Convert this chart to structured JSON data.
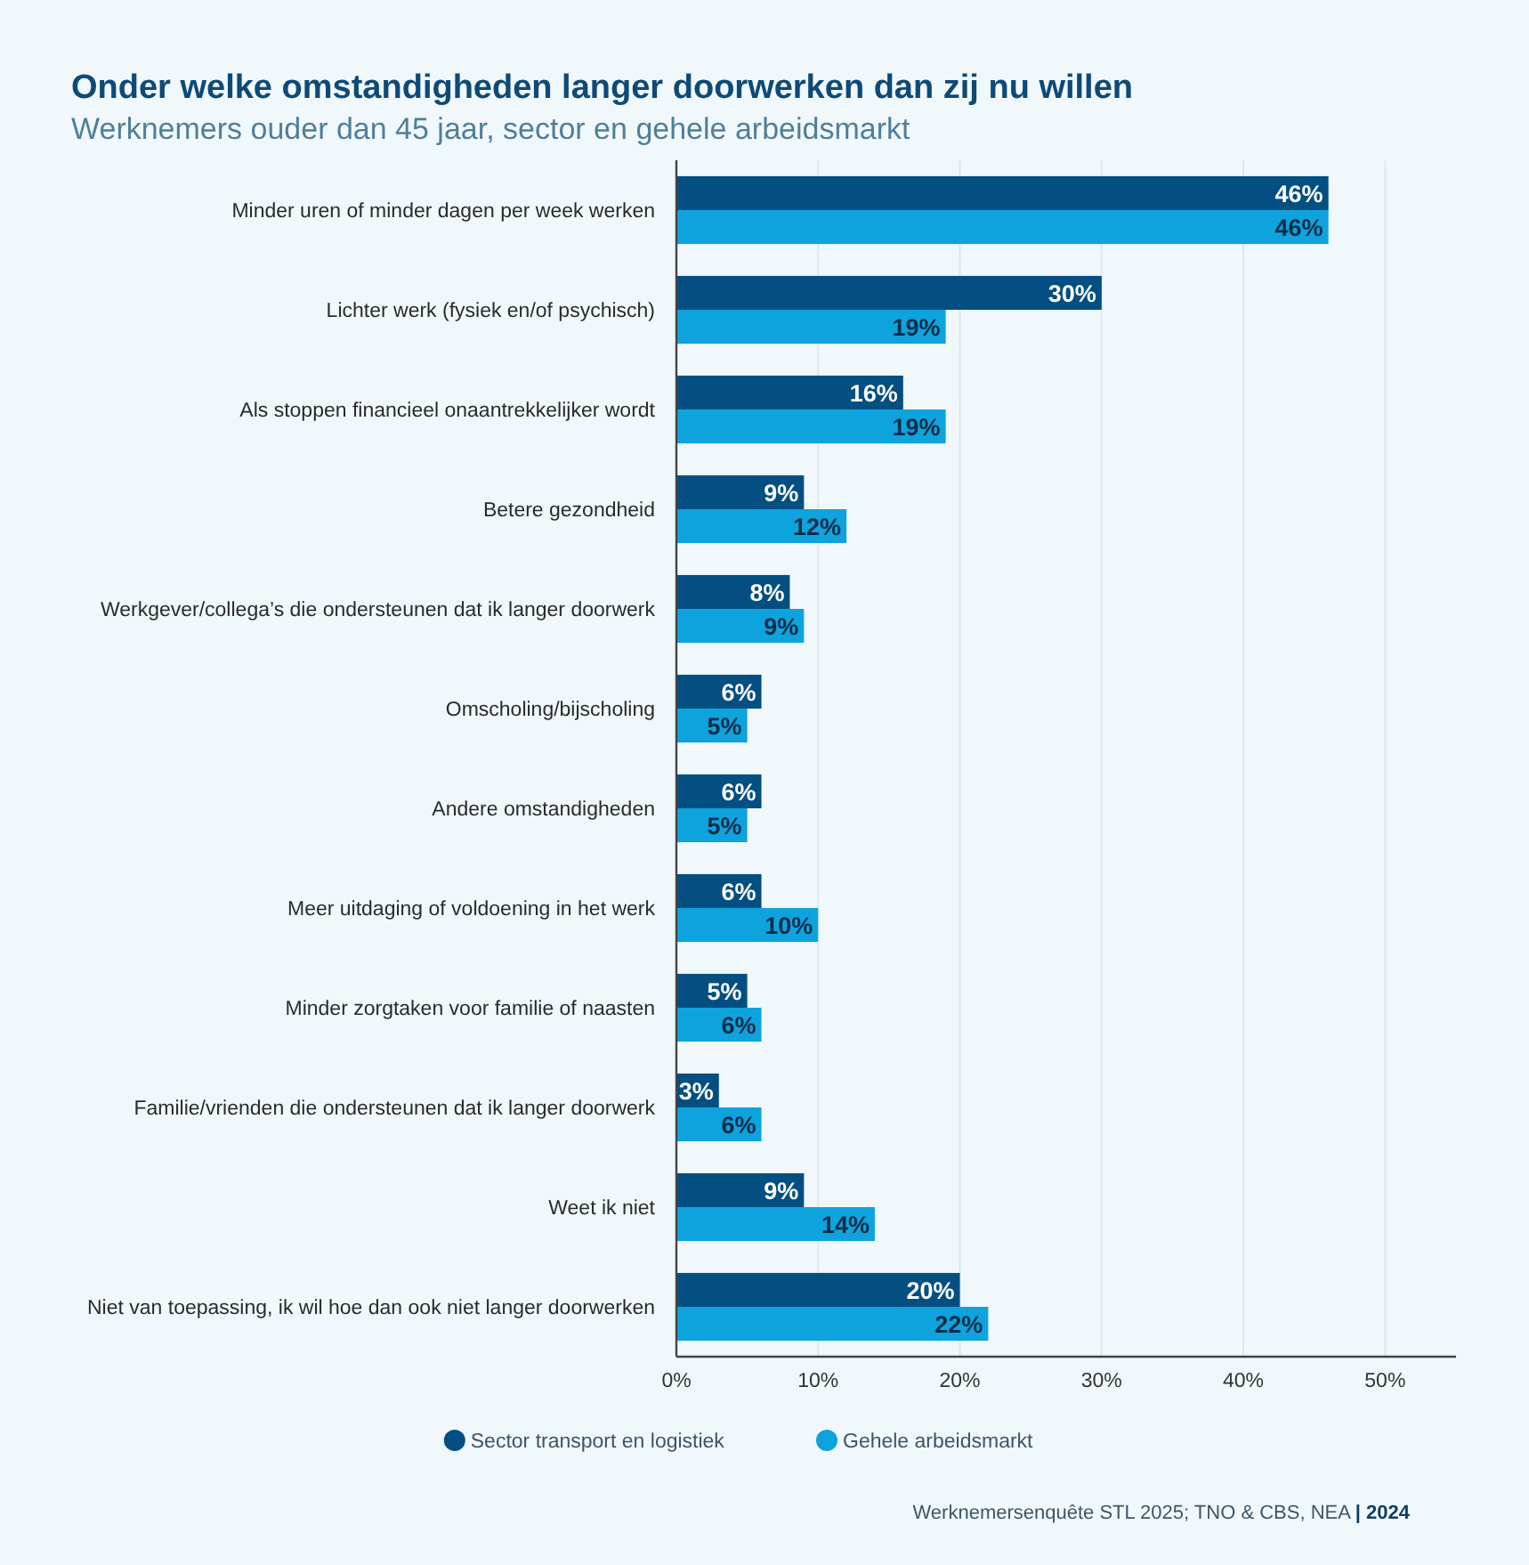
{
  "chart_data": {
    "type": "bar",
    "orientation": "horizontal",
    "title": "Onder welke omstandigheden langer doorwerken dan zij nu willen",
    "subtitle": "Werknemers ouder dan 45 jaar, sector en gehele arbeidsmarkt",
    "categories": [
      "Minder uren of minder dagen per week werken",
      "Lichter werk (fysiek en/of psychisch)",
      "Als stoppen financieel onaantrekkelijker wordt",
      "Betere gezondheid",
      "Werkgever/collega’s die ondersteunen dat ik langer doorwerk",
      "Omscholing/bijscholing",
      "Andere omstandigheden",
      "Meer uitdaging of voldoening in het werk",
      "Minder zorgtaken voor familie of naasten",
      "Familie/vrienden die ondersteunen dat ik langer doorwerk",
      "Weet ik niet",
      "Niet van toepassing, ik wil hoe dan ook niet langer doorwerken"
    ],
    "series": [
      {
        "name": "Sector transport en logistiek",
        "color": "#034f82",
        "values": [
          46,
          30,
          16,
          9,
          8,
          6,
          6,
          6,
          5,
          3,
          9,
          20
        ],
        "value_labels": [
          "46%",
          "30%",
          "16%",
          "9%",
          "8%",
          "6%",
          "6%",
          "6%",
          "5%",
          "3%",
          "9%",
          "20%"
        ]
      },
      {
        "name": "Gehele arbeidsmarkt",
        "color": "#0ea3dd",
        "values": [
          46,
          19,
          19,
          12,
          9,
          5,
          5,
          10,
          6,
          6,
          14,
          22
        ],
        "value_labels": [
          "46%",
          "19%",
          "19%",
          "12%",
          "9%",
          "5%",
          "5%",
          "10%",
          "6%",
          "6%",
          "14%",
          "22%"
        ]
      }
    ],
    "xlim": [
      0,
      55
    ],
    "xticks": [
      {
        "value": 0,
        "label": "0%"
      },
      {
        "value": 10,
        "label": "10%"
      },
      {
        "value": 20,
        "label": "20%"
      },
      {
        "value": 30,
        "label": "30%"
      },
      {
        "value": 40,
        "label": "40%"
      },
      {
        "value": 50,
        "label": "50%"
      }
    ],
    "grid": "x",
    "legend": "bottom",
    "annotations": [
      "Werknemersenquête STL 2025; TNO & CBS, NEA | 2024"
    ]
  }
}
